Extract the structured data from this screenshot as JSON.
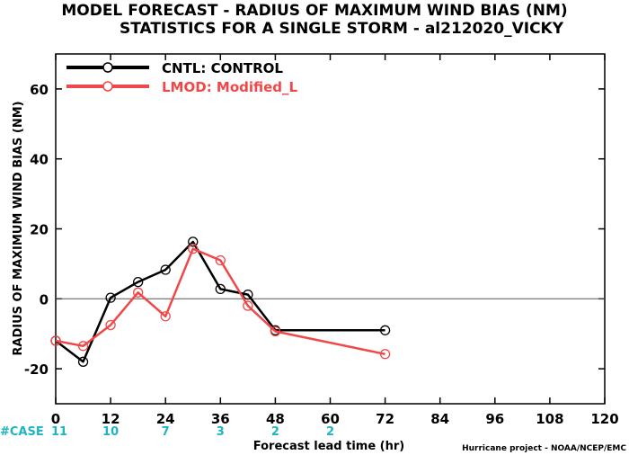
{
  "chart_data": {
    "type": "line",
    "title": "MODEL FORECAST - RADIUS OF MAXIMUM WIND BIAS (NM)",
    "subtitle": "STATISTICS FOR A SINGLE STORM - al212020_VICKY",
    "xlabel": "Forecast lead time (hr)",
    "ylabel": "RADIUS OF MAXIMUM WIND BIAS (NM)",
    "xlim": [
      0,
      120
    ],
    "ylim": [
      -30,
      70
    ],
    "xticks": [
      "0",
      "12",
      "24",
      "36",
      "48",
      "60",
      "72",
      "84",
      "96",
      "108",
      "120"
    ],
    "yticks": [
      "-20",
      "0",
      "20",
      "40",
      "60"
    ],
    "zero_line": true,
    "legend_placement": "top-left",
    "series": [
      {
        "name": "CNTL: CONTROL",
        "color": "#000000",
        "x": [
          0,
          6,
          12,
          18,
          24,
          30,
          36,
          42,
          48,
          72
        ],
        "y": [
          -12,
          -18,
          0.3,
          4.8,
          8.3,
          16.3,
          2.8,
          1.2,
          -9,
          -9
        ]
      },
      {
        "name": "LMOD: Modified_L",
        "color": "#f04848",
        "x": [
          0,
          6,
          12,
          18,
          24,
          30,
          36,
          42,
          48,
          72
        ],
        "y": [
          -12,
          -13.5,
          -7.5,
          1.8,
          -5,
          14.3,
          11,
          -2,
          -9.3,
          -15.8
        ]
      }
    ],
    "case_label": "#CASE",
    "case_counts": [
      {
        "x": 0,
        "label": "11"
      },
      {
        "x": 12,
        "label": "10"
      },
      {
        "x": 24,
        "label": "7"
      },
      {
        "x": 36,
        "label": "3"
      },
      {
        "x": 48,
        "label": "2"
      },
      {
        "x": 60,
        "label": "2"
      }
    ],
    "credit": "Hurricane project - NOAA/NCEP/EMC"
  }
}
